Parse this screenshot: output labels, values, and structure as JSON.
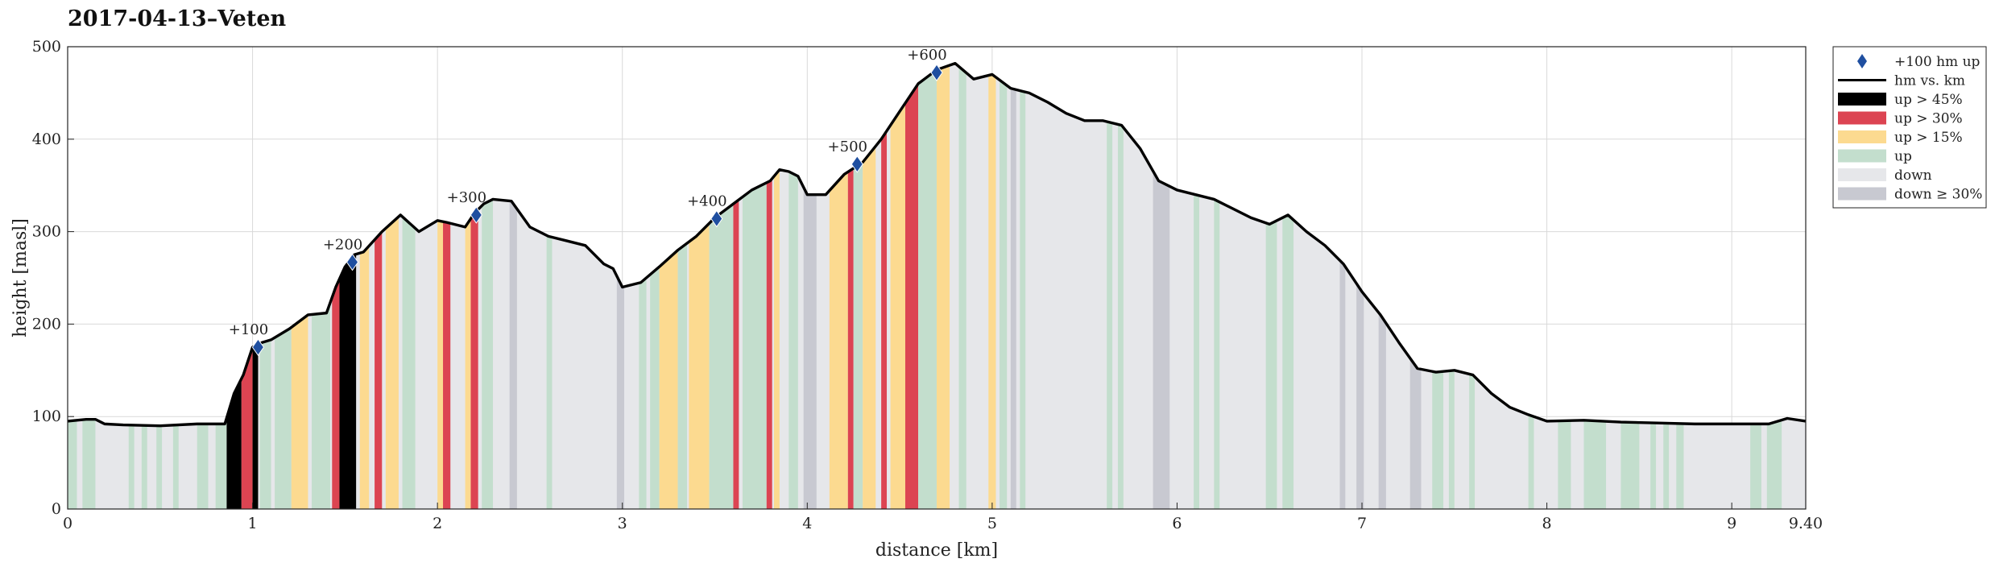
{
  "chart_data": {
    "type": "area",
    "title": "2017-04-13–Veten",
    "xlabel": "distance [km]",
    "ylabel": "height [masl]",
    "xlim": [
      0,
      9.4
    ],
    "ylim": [
      0,
      500
    ],
    "x_ticks": [
      0,
      1,
      2,
      3,
      4,
      5,
      6,
      7,
      8,
      9,
      9.4
    ],
    "x_tick_labels": [
      "0",
      "1",
      "2",
      "3",
      "4",
      "5",
      "6",
      "7",
      "8",
      "9",
      "9.40"
    ],
    "y_ticks": [
      0,
      100,
      200,
      300,
      400,
      500
    ],
    "grid": true,
    "legend_position": "outside-right-top",
    "legend": [
      {
        "key": "marker",
        "label": "+100 hm up",
        "color": "#1f4fa0"
      },
      {
        "key": "line",
        "label": "hm vs. km",
        "color": "#000000"
      },
      {
        "key": "up45",
        "label": "up > 45%",
        "color": "#000000"
      },
      {
        "key": "up30",
        "label": "up > 30%",
        "color": "#dc4452"
      },
      {
        "key": "up15",
        "label": "up > 15%",
        "color": "#fcda90"
      },
      {
        "key": "up",
        "label": "up",
        "color": "#c3decd"
      },
      {
        "key": "down",
        "label": "down",
        "color": "#e6e7ea"
      },
      {
        "key": "down30",
        "label": "down ≥ 30%",
        "color": "#c8c9d1"
      }
    ],
    "profile": {
      "x": [
        0,
        0.1,
        0.15,
        0.2,
        0.3,
        0.5,
        0.7,
        0.85,
        0.9,
        0.95,
        1.0,
        1.05,
        1.1,
        1.2,
        1.3,
        1.4,
        1.45,
        1.5,
        1.55,
        1.6,
        1.7,
        1.8,
        1.9,
        2.0,
        2.05,
        2.15,
        2.2,
        2.25,
        2.3,
        2.4,
        2.5,
        2.6,
        2.7,
        2.8,
        2.9,
        2.95,
        3.0,
        3.1,
        3.2,
        3.3,
        3.4,
        3.5,
        3.6,
        3.7,
        3.8,
        3.85,
        3.9,
        3.95,
        4.0,
        4.1,
        4.2,
        4.3,
        4.4,
        4.5,
        4.6,
        4.7,
        4.8,
        4.9,
        5.0,
        5.1,
        5.2,
        5.3,
        5.4,
        5.5,
        5.6,
        5.7,
        5.8,
        5.9,
        6.0,
        6.1,
        6.2,
        6.3,
        6.4,
        6.5,
        6.6,
        6.7,
        6.8,
        6.9,
        7.0,
        7.1,
        7.2,
        7.3,
        7.4,
        7.5,
        7.6,
        7.7,
        7.8,
        7.9,
        8.0,
        8.2,
        8.4,
        8.6,
        8.8,
        9.0,
        9.2,
        9.3,
        9.4
      ],
      "y": [
        95,
        97,
        97,
        92,
        91,
        90,
        92,
        92,
        125,
        145,
        175,
        180,
        183,
        195,
        210,
        212,
        240,
        262,
        275,
        278,
        300,
        318,
        300,
        312,
        310,
        305,
        320,
        330,
        335,
        333,
        305,
        295,
        290,
        285,
        265,
        260,
        240,
        245,
        262,
        280,
        295,
        315,
        330,
        345,
        355,
        367,
        365,
        360,
        340,
        340,
        362,
        375,
        400,
        430,
        460,
        475,
        482,
        465,
        470,
        455,
        450,
        440,
        428,
        420,
        420,
        415,
        390,
        355,
        345,
        340,
        335,
        325,
        315,
        308,
        318,
        300,
        285,
        265,
        235,
        210,
        180,
        152,
        148,
        150,
        145,
        125,
        110,
        102,
        95,
        96,
        94,
        93,
        92,
        92,
        92,
        98,
        95
      ]
    },
    "markers": [
      {
        "x": 1.03,
        "y": 175,
        "label": "+100"
      },
      {
        "x": 1.54,
        "y": 267,
        "label": "+200"
      },
      {
        "x": 2.21,
        "y": 318,
        "label": "+300"
      },
      {
        "x": 3.51,
        "y": 314,
        "label": "+400"
      },
      {
        "x": 4.27,
        "y": 373,
        "label": "+500"
      },
      {
        "x": 4.7,
        "y": 472,
        "label": "+600"
      }
    ],
    "segments": [
      {
        "x0": 0.0,
        "x1": 0.05,
        "cat": "up"
      },
      {
        "x0": 0.08,
        "x1": 0.15,
        "cat": "up"
      },
      {
        "x0": 0.33,
        "x1": 0.36,
        "cat": "up"
      },
      {
        "x0": 0.4,
        "x1": 0.43,
        "cat": "up"
      },
      {
        "x0": 0.48,
        "x1": 0.51,
        "cat": "up"
      },
      {
        "x0": 0.57,
        "x1": 0.6,
        "cat": "up"
      },
      {
        "x0": 0.7,
        "x1": 0.76,
        "cat": "up"
      },
      {
        "x0": 0.8,
        "x1": 0.86,
        "cat": "up"
      },
      {
        "x0": 0.86,
        "x1": 0.94,
        "cat": "up45"
      },
      {
        "x0": 0.94,
        "x1": 1.0,
        "cat": "up30"
      },
      {
        "x0": 1.0,
        "x1": 1.03,
        "cat": "up45"
      },
      {
        "x0": 1.04,
        "x1": 1.1,
        "cat": "up"
      },
      {
        "x0": 1.12,
        "x1": 1.21,
        "cat": "up"
      },
      {
        "x0": 1.21,
        "x1": 1.3,
        "cat": "up15"
      },
      {
        "x0": 1.32,
        "x1": 1.42,
        "cat": "up"
      },
      {
        "x0": 1.43,
        "x1": 1.47,
        "cat": "up30"
      },
      {
        "x0": 1.47,
        "x1": 1.56,
        "cat": "up45"
      },
      {
        "x0": 1.58,
        "x1": 1.63,
        "cat": "up15"
      },
      {
        "x0": 1.66,
        "x1": 1.7,
        "cat": "up30"
      },
      {
        "x0": 1.72,
        "x1": 1.79,
        "cat": "up15"
      },
      {
        "x0": 1.81,
        "x1": 1.88,
        "cat": "up"
      },
      {
        "x0": 2.0,
        "x1": 2.03,
        "cat": "up15"
      },
      {
        "x0": 2.03,
        "x1": 2.07,
        "cat": "up30"
      },
      {
        "x0": 2.15,
        "x1": 2.18,
        "cat": "up15"
      },
      {
        "x0": 2.18,
        "x1": 2.22,
        "cat": "up30"
      },
      {
        "x0": 2.24,
        "x1": 2.3,
        "cat": "up"
      },
      {
        "x0": 2.39,
        "x1": 2.43,
        "cat": "down30"
      },
      {
        "x0": 2.59,
        "x1": 2.62,
        "cat": "up"
      },
      {
        "x0": 2.97,
        "x1": 3.01,
        "cat": "down30"
      },
      {
        "x0": 3.09,
        "x1": 3.13,
        "cat": "up"
      },
      {
        "x0": 3.15,
        "x1": 3.2,
        "cat": "up"
      },
      {
        "x0": 3.2,
        "x1": 3.3,
        "cat": "up15"
      },
      {
        "x0": 3.3,
        "x1": 3.35,
        "cat": "up"
      },
      {
        "x0": 3.36,
        "x1": 3.47,
        "cat": "up15"
      },
      {
        "x0": 3.47,
        "x1": 3.6,
        "cat": "up"
      },
      {
        "x0": 3.6,
        "x1": 3.63,
        "cat": "up30"
      },
      {
        "x0": 3.65,
        "x1": 3.78,
        "cat": "up"
      },
      {
        "x0": 3.78,
        "x1": 3.81,
        "cat": "up30"
      },
      {
        "x0": 3.82,
        "x1": 3.85,
        "cat": "up15"
      },
      {
        "x0": 3.9,
        "x1": 3.95,
        "cat": "up"
      },
      {
        "x0": 3.98,
        "x1": 4.05,
        "cat": "down30"
      },
      {
        "x0": 4.12,
        "x1": 4.22,
        "cat": "up15"
      },
      {
        "x0": 4.22,
        "x1": 4.25,
        "cat": "up30"
      },
      {
        "x0": 4.25,
        "x1": 4.3,
        "cat": "up"
      },
      {
        "x0": 4.3,
        "x1": 4.37,
        "cat": "up15"
      },
      {
        "x0": 4.4,
        "x1": 4.43,
        "cat": "up30"
      },
      {
        "x0": 4.45,
        "x1": 4.53,
        "cat": "up15"
      },
      {
        "x0": 4.53,
        "x1": 4.6,
        "cat": "up30"
      },
      {
        "x0": 4.6,
        "x1": 4.7,
        "cat": "up"
      },
      {
        "x0": 4.7,
        "x1": 4.77,
        "cat": "up15"
      },
      {
        "x0": 4.82,
        "x1": 4.86,
        "cat": "up"
      },
      {
        "x0": 4.98,
        "x1": 5.02,
        "cat": "up15"
      },
      {
        "x0": 5.04,
        "x1": 5.08,
        "cat": "up"
      },
      {
        "x0": 5.1,
        "x1": 5.13,
        "cat": "down30"
      },
      {
        "x0": 5.15,
        "x1": 5.18,
        "cat": "up"
      },
      {
        "x0": 5.62,
        "x1": 5.65,
        "cat": "up"
      },
      {
        "x0": 5.68,
        "x1": 5.71,
        "cat": "up"
      },
      {
        "x0": 5.87,
        "x1": 5.96,
        "cat": "down30"
      },
      {
        "x0": 6.09,
        "x1": 6.12,
        "cat": "up"
      },
      {
        "x0": 6.2,
        "x1": 6.23,
        "cat": "up"
      },
      {
        "x0": 6.48,
        "x1": 6.54,
        "cat": "up"
      },
      {
        "x0": 6.57,
        "x1": 6.63,
        "cat": "up"
      },
      {
        "x0": 6.88,
        "x1": 6.91,
        "cat": "down30"
      },
      {
        "x0": 6.97,
        "x1": 7.01,
        "cat": "down30"
      },
      {
        "x0": 7.09,
        "x1": 7.13,
        "cat": "down30"
      },
      {
        "x0": 7.26,
        "x1": 7.32,
        "cat": "down30"
      },
      {
        "x0": 7.38,
        "x1": 7.44,
        "cat": "up"
      },
      {
        "x0": 7.47,
        "x1": 7.5,
        "cat": "up"
      },
      {
        "x0": 7.58,
        "x1": 7.61,
        "cat": "up"
      },
      {
        "x0": 7.9,
        "x1": 7.93,
        "cat": "up"
      },
      {
        "x0": 8.06,
        "x1": 8.13,
        "cat": "up"
      },
      {
        "x0": 8.2,
        "x1": 8.32,
        "cat": "up"
      },
      {
        "x0": 8.4,
        "x1": 8.5,
        "cat": "up"
      },
      {
        "x0": 8.56,
        "x1": 8.59,
        "cat": "up"
      },
      {
        "x0": 8.63,
        "x1": 8.66,
        "cat": "up"
      },
      {
        "x0": 8.7,
        "x1": 8.74,
        "cat": "up"
      },
      {
        "x0": 9.1,
        "x1": 9.16,
        "cat": "up"
      },
      {
        "x0": 9.19,
        "x1": 9.27,
        "cat": "up"
      }
    ]
  }
}
